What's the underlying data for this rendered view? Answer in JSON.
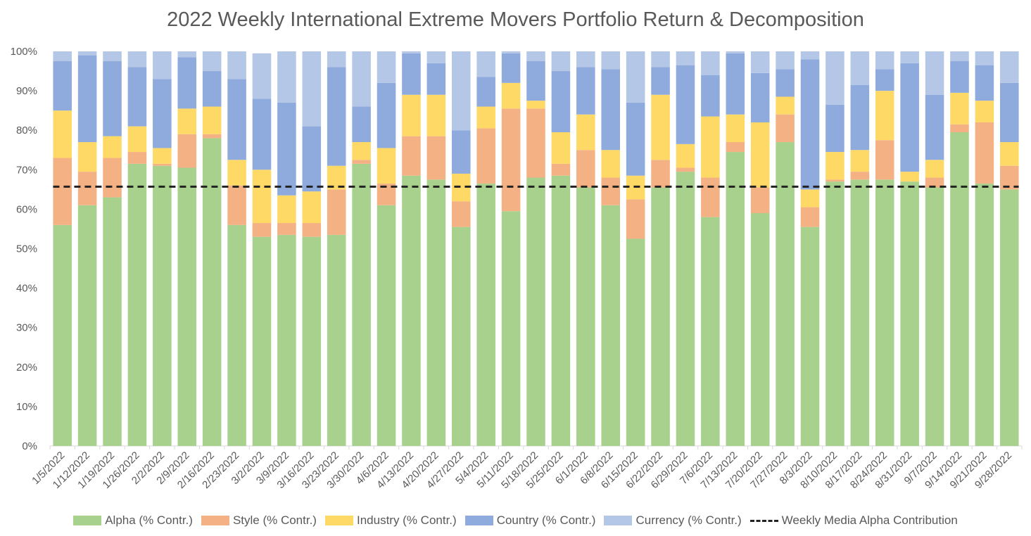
{
  "chart_data": {
    "type": "bar",
    "stacked": true,
    "title": "2022 Weekly International Extreme Movers Portfolio Return & Decomposition",
    "ylim": [
      0,
      100
    ],
    "yticks": [
      "0%",
      "10%",
      "20%",
      "30%",
      "40%",
      "50%",
      "60%",
      "70%",
      "80%",
      "90%",
      "100%"
    ],
    "categories": [
      "1/5/2022",
      "1/12/2022",
      "1/19/2022",
      "1/26/2022",
      "2/2/2022",
      "2/9/2022",
      "2/16/2022",
      "2/23/2022",
      "3/2/2022",
      "3/9/2022",
      "3/16/2022",
      "3/23/2022",
      "3/30/2022",
      "4/6/2022",
      "4/13/2022",
      "4/20/2022",
      "4/27/2022",
      "5/4/2022",
      "5/11/2022",
      "5/18/2022",
      "5/25/2022",
      "6/1/2022",
      "6/8/2022",
      "6/15/2022",
      "6/22/2022",
      "6/29/2022",
      "7/6/2022",
      "7/13/2022",
      "7/20/2022",
      "7/27/2022",
      "8/3/2022",
      "8/10/2022",
      "8/17/2022",
      "8/24/2022",
      "8/31/2022",
      "9/7/2022",
      "9/14/2022",
      "9/21/2022",
      "9/28/2022"
    ],
    "series": [
      {
        "name": "Alpha (% Contr.)",
        "color": "#a9d18e",
        "values": [
          56,
          61,
          63,
          71.5,
          71,
          70.5,
          78,
          56,
          53,
          53.5,
          53,
          53.5,
          71.5,
          61,
          68.5,
          67.5,
          55.5,
          66.5,
          59.5,
          68,
          68.5,
          65.5,
          61,
          52.5,
          65.5,
          69.5,
          58,
          74.5,
          59,
          77,
          55.5,
          67,
          67.5,
          67.5,
          67,
          65.5,
          79.5,
          66.5,
          65
        ]
      },
      {
        "name": "Style (% Contr.)",
        "color": "#f4b183",
        "values": [
          17,
          8.5,
          10,
          3,
          0.5,
          8.5,
          1,
          10,
          3.5,
          3,
          3.5,
          11.5,
          1,
          5.5,
          10,
          11,
          6.5,
          14,
          26,
          17.5,
          3,
          9.5,
          7,
          10,
          7,
          1,
          10,
          2.5,
          6.5,
          7,
          5,
          0.5,
          2,
          10,
          0,
          2.5,
          2,
          15.5,
          6
        ]
      },
      {
        "name": "Industry (% Contr.)",
        "color": "#ffd966",
        "values": [
          12,
          7.5,
          5.5,
          6.5,
          4,
          6.5,
          7,
          6.5,
          13.5,
          7,
          8,
          6,
          4.5,
          9,
          10.5,
          10.5,
          7,
          5.5,
          6.5,
          2,
          8,
          9,
          7,
          6,
          16.5,
          6,
          15.5,
          7,
          16.5,
          4.5,
          4.5,
          7,
          5.5,
          12.5,
          2.5,
          4.5,
          8,
          5.5,
          6
        ]
      },
      {
        "name": "Country (% Contr.)",
        "color": "#8faadc",
        "values": [
          12.5,
          22,
          19,
          15,
          17.5,
          13,
          9,
          20.5,
          18,
          23.5,
          16.5,
          25,
          9,
          16.5,
          10.5,
          8,
          11,
          7.5,
          7.5,
          10,
          15.5,
          12,
          20.5,
          18.5,
          7,
          20,
          10.5,
          15.5,
          12.5,
          7,
          33,
          12,
          16.5,
          5.5,
          27.5,
          16.5,
          8,
          9,
          15
        ]
      },
      {
        "name": "Currency (% Contr.)",
        "color": "#b4c7e7",
        "values": [
          2.5,
          1,
          2.5,
          4,
          7,
          1.5,
          5,
          7,
          11.5,
          13,
          19,
          4,
          14,
          8,
          0.5,
          3,
          20,
          6.5,
          0.5,
          2.5,
          5,
          4,
          4.5,
          13,
          4,
          3.5,
          6,
          0.5,
          5.5,
          4.5,
          2,
          13.5,
          8.5,
          4.5,
          3,
          11,
          2.5,
          3.5,
          8
        ]
      }
    ],
    "reference_line": {
      "name": "Weekly Media Alpha Contribution",
      "value": 65.7,
      "style": "dashed",
      "color": "#222222"
    },
    "legend_position": "bottom",
    "grid": false
  },
  "legend": {
    "items": [
      {
        "label": "Alpha (% Contr.)",
        "color": "#a9d18e"
      },
      {
        "label": "Style (% Contr.)",
        "color": "#f4b183"
      },
      {
        "label": "Industry (% Contr.)",
        "color": "#ffd966"
      },
      {
        "label": "Country (% Contr.)",
        "color": "#8faadc"
      },
      {
        "label": "Currency (% Contr.)",
        "color": "#b4c7e7"
      }
    ],
    "line_label": "Weekly Media Alpha Contribution"
  }
}
